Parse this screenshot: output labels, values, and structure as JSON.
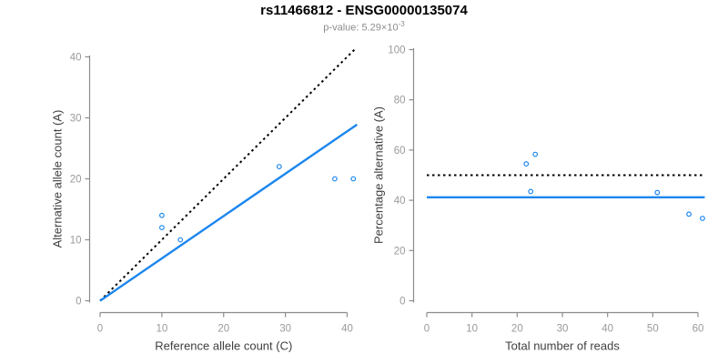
{
  "header": {
    "title": "rs11466812 - ENSG00000135074",
    "subtitle_prefix": "p-value: 5.29×10",
    "subtitle_exponent": "-3"
  },
  "colors": {
    "title": "#000000",
    "subtitle": "#8c8c8c",
    "axis_line": "#8c8c8c",
    "tick_label": "#9a9a9a",
    "axis_title": "#404040",
    "point": "#1C86EE",
    "fit_line": "#1C86EE",
    "reference_line": "#000000"
  },
  "chart_data": [
    {
      "type": "scatter",
      "panel": "allele-counts",
      "xlabel": "Reference allele count (C)",
      "ylabel": "Alternative allele count (A)",
      "xlim": [
        0,
        40
      ],
      "ylim": [
        0,
        40
      ],
      "xticks": [
        0,
        10,
        20,
        30,
        40
      ],
      "yticks": [
        0,
        10,
        20,
        30,
        40
      ],
      "grid": false,
      "legend": false,
      "points": [
        [
          10,
          14
        ],
        [
          10,
          12
        ],
        [
          13,
          10
        ],
        [
          29,
          22
        ],
        [
          38,
          20
        ],
        [
          41,
          20
        ]
      ],
      "lines": [
        {
          "name": "identity-line",
          "style": "dotted",
          "color": "#000000",
          "x": [
            0,
            41.2
          ],
          "y": [
            0,
            41.2
          ]
        },
        {
          "name": "fit-line",
          "style": "solid",
          "color": "#1C86EE",
          "x": [
            0,
            41.6
          ],
          "y": [
            0,
            28.9
          ]
        }
      ]
    },
    {
      "type": "scatter",
      "panel": "percentage-vs-reads",
      "xlabel": "Total number of reads",
      "ylabel": "Percentage alternative (A)",
      "xlim": [
        0,
        62
      ],
      "ylim": [
        0,
        100
      ],
      "xticks": [
        0,
        10,
        20,
        30,
        40,
        50,
        60
      ],
      "yticks": [
        0,
        20,
        40,
        60,
        80,
        100
      ],
      "grid": false,
      "legend": false,
      "points": [
        [
          22,
          54.5
        ],
        [
          23,
          43.5
        ],
        [
          24,
          58.3
        ],
        [
          51,
          43.1
        ],
        [
          58,
          34.5
        ],
        [
          61,
          32.8
        ]
      ],
      "lines": [
        {
          "name": "expected-50pct-line",
          "style": "dotted",
          "color": "#000000",
          "x": [
            0,
            61.5
          ],
          "y": [
            50,
            50
          ]
        },
        {
          "name": "mean-percentage-line",
          "style": "solid",
          "color": "#1C86EE",
          "x": [
            0,
            61.5
          ],
          "y": [
            41.2,
            41.2
          ]
        }
      ]
    }
  ]
}
